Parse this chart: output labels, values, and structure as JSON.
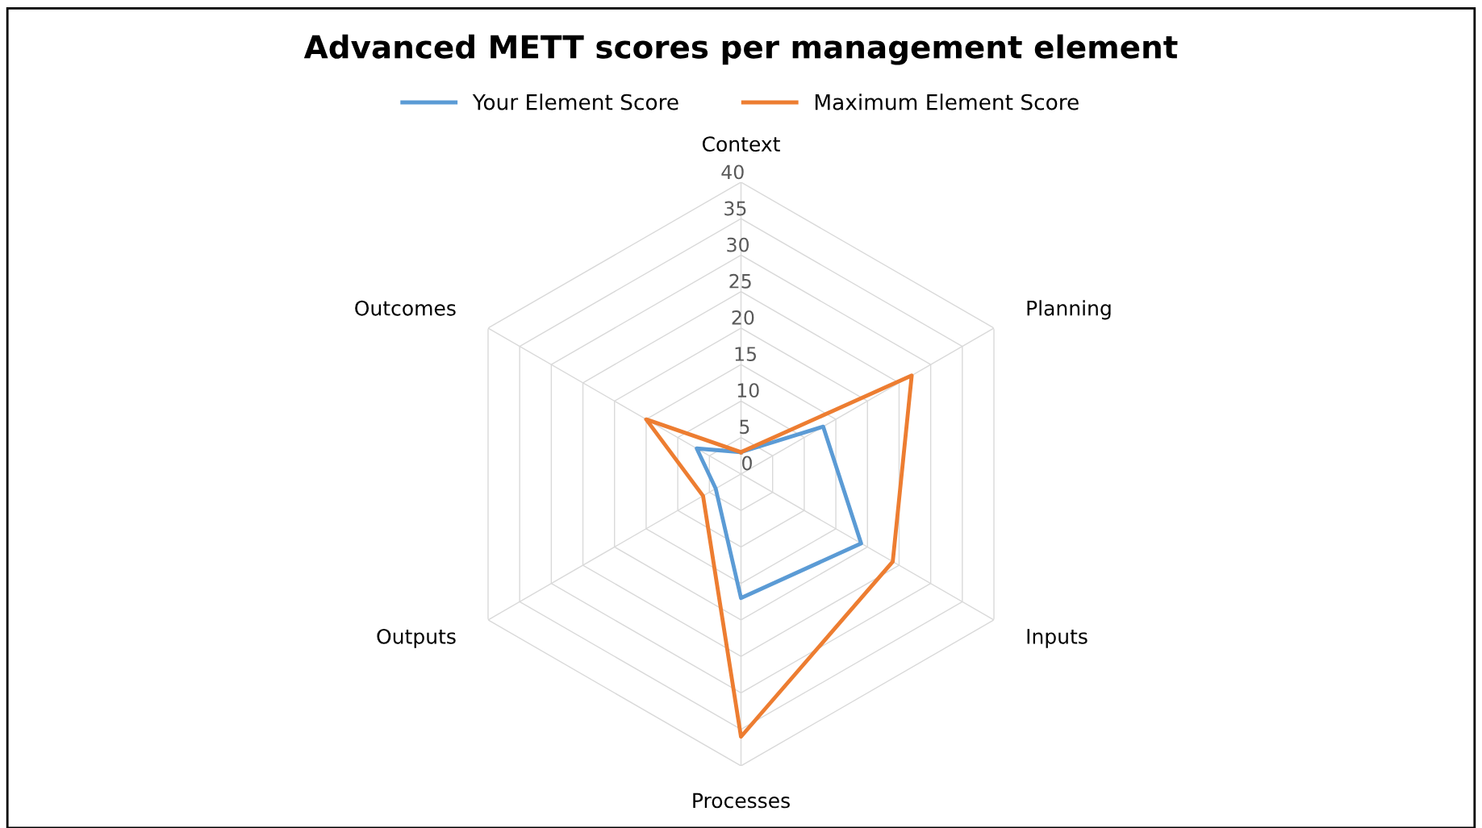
{
  "chart_data": {
    "type": "radar",
    "title": "Advanced METT scores per management element",
    "categories": [
      "Context",
      "Planning",
      "Inputs",
      "Processes",
      "Outputs",
      "Outcomes"
    ],
    "series": [
      {
        "name": "Your Element Score",
        "color": "#5b9bd5",
        "values": [
          3,
          13,
          19,
          17,
          4,
          7
        ]
      },
      {
        "name": "Maximum Element Score",
        "color": "#ed7d31",
        "values": [
          3,
          27,
          24,
          36,
          6,
          15
        ]
      }
    ],
    "ylim": [
      0,
      40
    ],
    "yticks": [
      0,
      5,
      10,
      15,
      20,
      25,
      30,
      35,
      40
    ],
    "grid": true,
    "legend": "top"
  }
}
